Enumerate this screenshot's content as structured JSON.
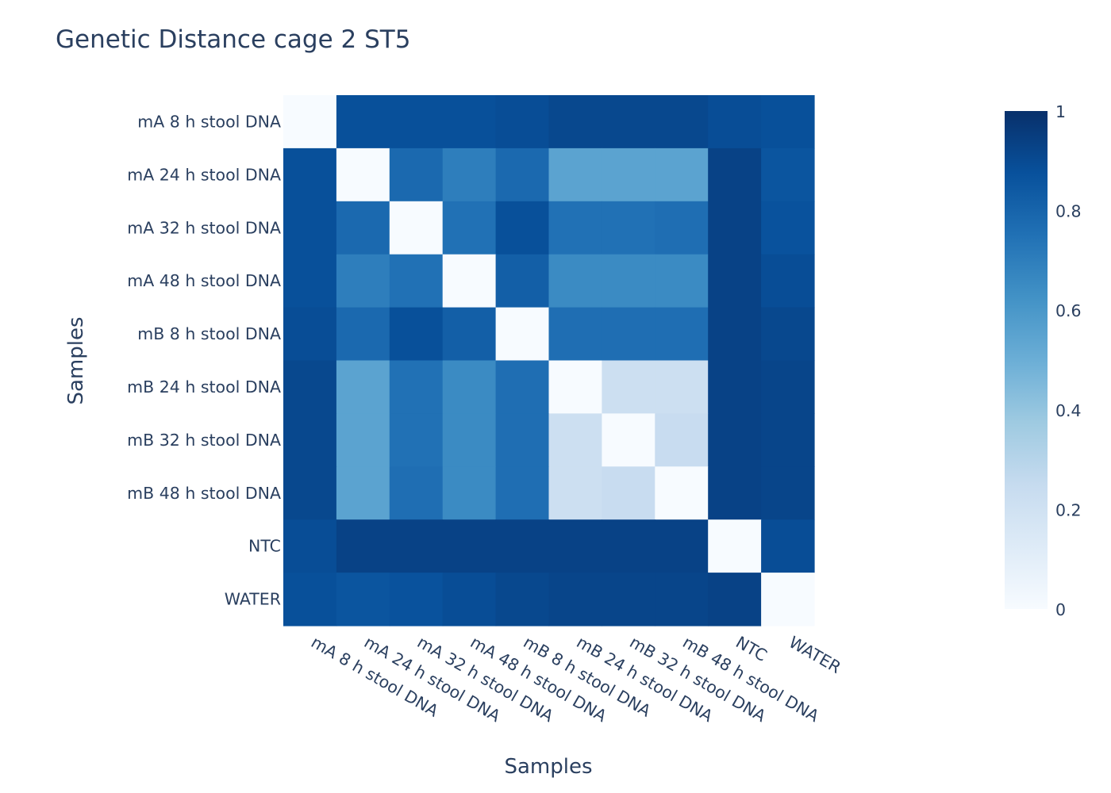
{
  "chart_data": {
    "type": "heatmap",
    "title": "Genetic Distance cage 2 ST5",
    "xlabel": "Samples",
    "ylabel": "Samples",
    "categories": [
      "mA 8 h stool DNA",
      "mA 24 h stool DNA",
      "mA 32 h stool DNA",
      "mA 48 h stool DNA",
      "mB 8 h stool DNA",
      "mB 24 h stool DNA",
      "mB 32 h stool DNA",
      "mB 48 h stool DNA",
      "NTC",
      "WATER"
    ],
    "values": [
      [
        0.0,
        0.88,
        0.88,
        0.88,
        0.89,
        0.91,
        0.91,
        0.91,
        0.89,
        0.88
      ],
      [
        0.88,
        0.0,
        0.78,
        0.7,
        0.78,
        0.55,
        0.55,
        0.55,
        0.93,
        0.86
      ],
      [
        0.88,
        0.78,
        0.0,
        0.75,
        0.88,
        0.75,
        0.75,
        0.76,
        0.93,
        0.87
      ],
      [
        0.88,
        0.7,
        0.75,
        0.0,
        0.82,
        0.65,
        0.65,
        0.65,
        0.93,
        0.89
      ],
      [
        0.89,
        0.78,
        0.88,
        0.82,
        0.0,
        0.76,
        0.76,
        0.76,
        0.93,
        0.91
      ],
      [
        0.91,
        0.55,
        0.75,
        0.65,
        0.76,
        0.0,
        0.22,
        0.22,
        0.93,
        0.92
      ],
      [
        0.91,
        0.55,
        0.75,
        0.65,
        0.76,
        0.22,
        0.0,
        0.24,
        0.93,
        0.92
      ],
      [
        0.91,
        0.55,
        0.76,
        0.65,
        0.76,
        0.22,
        0.24,
        0.0,
        0.93,
        0.92
      ],
      [
        0.89,
        0.93,
        0.93,
        0.93,
        0.93,
        0.93,
        0.93,
        0.93,
        0.0,
        0.89
      ],
      [
        0.88,
        0.86,
        0.87,
        0.89,
        0.91,
        0.92,
        0.92,
        0.92,
        0.93,
        0.0
      ]
    ],
    "zlim": [
      0,
      1
    ],
    "colorscale": "Blues",
    "colorbar_ticks": [
      0,
      0.2,
      0.4,
      0.6,
      0.8,
      1
    ],
    "colorbar_tick_labels": [
      "0",
      "0.2",
      "0.4",
      "0.6",
      "0.8",
      "1"
    ],
    "colorscale_stops": [
      [
        0.0,
        "#f7fbff"
      ],
      [
        0.125,
        "#deebf7"
      ],
      [
        0.25,
        "#c6dbef"
      ],
      [
        0.375,
        "#9ecae1"
      ],
      [
        0.5,
        "#6baed6"
      ],
      [
        0.625,
        "#4292c6"
      ],
      [
        0.75,
        "#2171b5"
      ],
      [
        0.875,
        "#08519c"
      ],
      [
        1.0,
        "#08306b"
      ]
    ],
    "legend": "colorbar-right"
  }
}
